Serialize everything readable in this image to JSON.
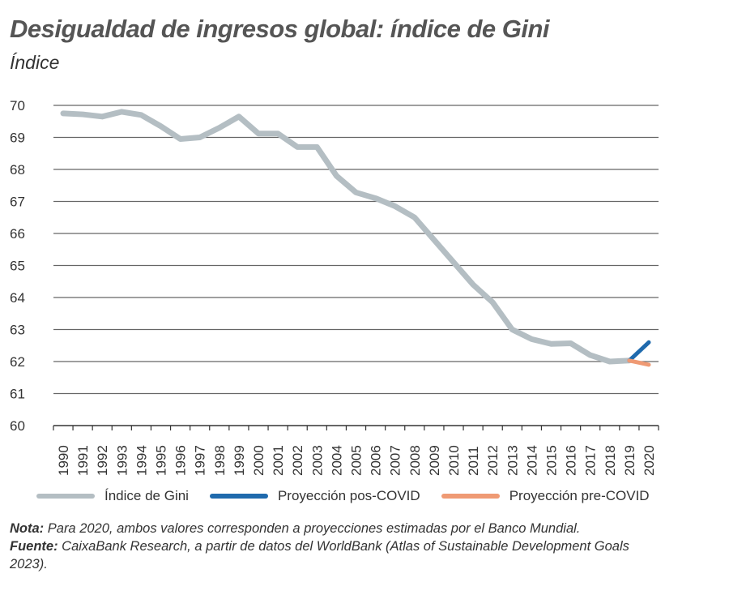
{
  "chart_data": {
    "type": "line",
    "title": "Desigualdad de ingresos global: índice de Gini",
    "subtitle": "Índice",
    "ylim": [
      60,
      70
    ],
    "yticks": [
      70,
      69,
      68,
      67,
      66,
      65,
      64,
      63,
      62,
      61,
      60
    ],
    "categories": [
      "1990",
      "1991",
      "1992",
      "1993",
      "1994",
      "1995",
      "1996",
      "1997",
      "1998",
      "1999",
      "2000",
      "2001",
      "2002",
      "2003",
      "2004",
      "2005",
      "2006",
      "2007",
      "2008",
      "2009",
      "2010",
      "2011",
      "2012",
      "2013",
      "2014",
      "2015",
      "2016",
      "2017",
      "2018",
      "2019",
      "2020"
    ],
    "grid": true,
    "legend_position": "bottom",
    "series": [
      {
        "name": "Índice de Gini",
        "color": "#b4bec3",
        "x": [
          "1990",
          "1991",
          "1992",
          "1993",
          "1994",
          "1995",
          "1996",
          "1997",
          "1998",
          "1999",
          "2000",
          "2001",
          "2002",
          "2003",
          "2004",
          "2005",
          "2006",
          "2007",
          "2008",
          "2009",
          "2010",
          "2011",
          "2012",
          "2013",
          "2014",
          "2015",
          "2016",
          "2017",
          "2018",
          "2019"
        ],
        "values": [
          69.75,
          69.72,
          69.65,
          69.8,
          69.7,
          69.35,
          68.95,
          69.0,
          69.3,
          69.65,
          69.12,
          69.12,
          68.7,
          68.7,
          67.8,
          67.28,
          67.1,
          66.85,
          66.5,
          65.8,
          65.1,
          64.4,
          63.85,
          63.0,
          62.7,
          62.55,
          62.57,
          62.2,
          62.0,
          62.03
        ]
      },
      {
        "name": "Proyección pos-COVID",
        "color": "#1f6aad",
        "x": [
          "2019",
          "2020"
        ],
        "values": [
          62.03,
          62.6
        ]
      },
      {
        "name": "Proyección pre-COVID",
        "color": "#ef9a74",
        "x": [
          "2019",
          "2020"
        ],
        "values": [
          62.03,
          61.9
        ]
      }
    ]
  },
  "notes": {
    "nota_label": "Nota:",
    "nota_text": " Para 2020, ambos valores corresponden a proyecciones estimadas por el Banco Mundial.",
    "fuente_label": "Fuente:",
    "fuente_text": " CaixaBank Research, a partir de datos del WorldBank (Atlas of Sustainable Development Goals 2023)."
  }
}
